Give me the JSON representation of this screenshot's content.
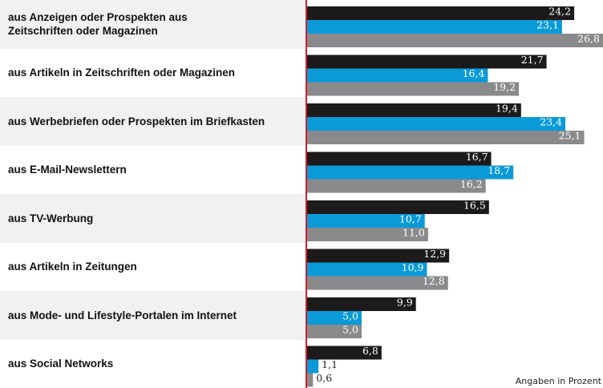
{
  "chart_data": {
    "type": "bar",
    "orientation": "horizontal",
    "categories": [
      "aus Anzeigen oder Prospekten aus\nZeitschriften oder Magazinen",
      "aus Artikeln in Zeitschriften oder Magazinen",
      "aus Werbebriefen oder Prospekten im Briefkasten",
      "aus E-Mail-Newslettern",
      "aus TV-Werbung",
      "aus Artikeln in Zeitungen",
      "aus Mode- und Lifestyle-Portalen im Internet",
      "aus Social Networks"
    ],
    "series": [
      {
        "color": "#1c1a1b",
        "values": [
          24.2,
          21.7,
          19.4,
          16.7,
          16.5,
          12.9,
          9.9,
          6.8
        ],
        "value_labels": [
          "24,2",
          "21,7",
          "19,4",
          "16,7",
          "16,5",
          "12,9",
          "9,9",
          "6,8"
        ]
      },
      {
        "color": "#0a9ad8",
        "values": [
          23.1,
          16.4,
          23.4,
          18.7,
          10.7,
          10.9,
          5.0,
          1.1
        ],
        "value_labels": [
          "23,1",
          "16,4",
          "23,4",
          "18,7",
          "10,7",
          "10,9",
          "5,0",
          "1,1"
        ]
      },
      {
        "color": "#8a8a8c",
        "values": [
          26.8,
          19.2,
          25.1,
          16.2,
          11.0,
          12.8,
          5.0,
          0.6
        ],
        "value_labels": [
          "26,8",
          "19,2",
          "25,1",
          "16,2",
          "11,0",
          "12,8",
          "5,0",
          "0,6"
        ]
      }
    ],
    "xlim": [
      0,
      26.8
    ],
    "note": "Angaben in Prozent"
  }
}
